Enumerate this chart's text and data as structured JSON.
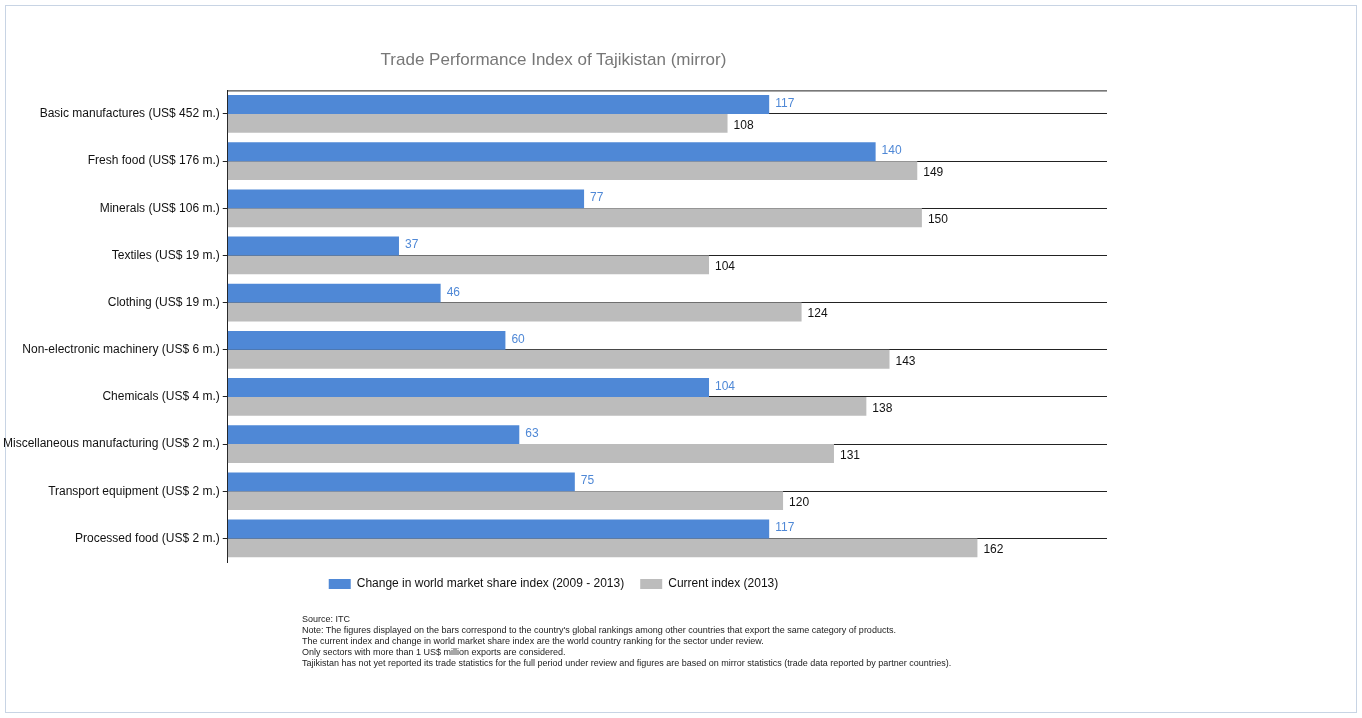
{
  "chart_data": {
    "type": "bar",
    "orientation": "horizontal",
    "title": "Trade Performance Index of Tajikistan (mirror)",
    "categories": [
      "Basic manufactures (US$ 452 m.)",
      "Fresh food (US$ 176 m.)",
      "Minerals (US$ 106 m.)",
      "Textiles (US$ 19 m.)",
      "Clothing (US$ 19 m.)",
      "Non-electronic machinery (US$ 6 m.)",
      "Chemicals (US$ 4 m.)",
      "Miscellaneous manufacturing (US$ 2 m.)",
      "Transport equipment (US$ 2 m.)",
      "Processed food (US$ 2 m.)"
    ],
    "series": [
      {
        "name": "Change in world market share index (2009 - 2013)",
        "color": "#4f88d6",
        "values": [
          117,
          140,
          77,
          37,
          46,
          60,
          104,
          63,
          75,
          117
        ]
      },
      {
        "name": "Current index (2013)",
        "color": "#bcbcbc",
        "values": [
          108,
          149,
          150,
          104,
          124,
          143,
          138,
          131,
          120,
          162
        ]
      }
    ],
    "xlim": [
      0,
      190
    ],
    "tick_labels": "y",
    "grid": "y",
    "legend": "bottom",
    "data_labels": true,
    "annotations": [
      "Source: ITC",
      "Note: The figures displayed on the bars correspond to the country's global rankings among other countries that export the same category of products.",
      "The current index and change in world market share index are the world country ranking for the sector under review.",
      "Only sectors with more than 1 US$ million exports are considered.",
      "Tajikistan has not yet reported its trade statistics for the full period under review and figures are based on mirror statistics (trade data reported by partner countries)."
    ]
  }
}
